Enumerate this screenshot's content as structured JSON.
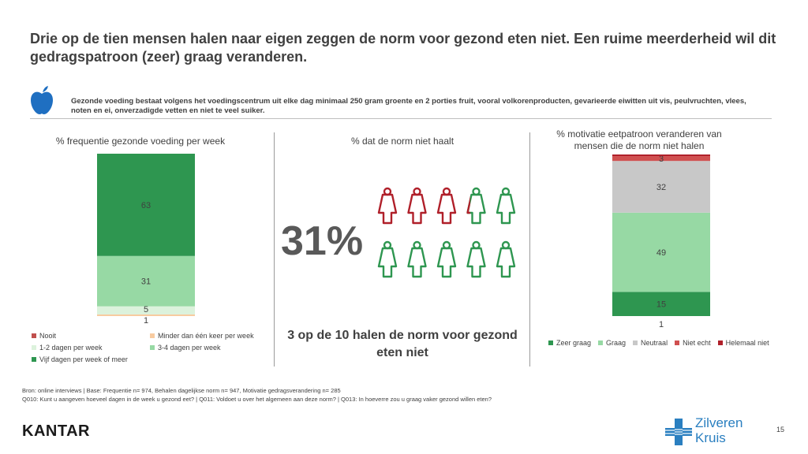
{
  "title": "Drie op de tien mensen halen naar eigen zeggen de norm voor gezond eten niet. Een ruime meerderheid wil dit gedragspatroon (zeer) graag veranderen.",
  "definition": "Gezonde voeding bestaat volgens het voedingscentrum uit elke dag minimaal 250 gram groente en 2 porties fruit, vooral volkorenproducten, gevarieerde eiwitten uit vis, peulvruchten, vlees, noten en ei, onverzadigde vetten en niet te veel suiker.",
  "icons": {
    "apple": "apple-icon",
    "person": "person-icon",
    "logo_cross": "cross-icon"
  },
  "chart_data": [
    {
      "type": "bar",
      "stacked": true,
      "title": "% frequentie gezonde voeding per week",
      "series": [
        {
          "name": "Nooit",
          "values": [
            0
          ],
          "color": "#c0504d",
          "label": ""
        },
        {
          "name": "Minder dan één keer per week",
          "values": [
            1
          ],
          "color": "#f8cba0",
          "label": "1"
        },
        {
          "name": "1-2 dagen per week",
          "values": [
            5
          ],
          "color": "#dcf2dc",
          "label": "5"
        },
        {
          "name": "3-4 dagen per week",
          "values": [
            31
          ],
          "color": "#97d9a4",
          "label": "31"
        },
        {
          "name": "Vijf dagen per week of meer",
          "values": [
            63
          ],
          "color": "#2e9650",
          "label": "63"
        }
      ],
      "legend_position": "bottom"
    },
    {
      "type": "pictogram",
      "title": "% dat de norm niet haalt",
      "value": 31,
      "big_label": "31%",
      "total_icons": 10,
      "highlight_color": "#b0202a",
      "base_color": "#2e9650",
      "caption": "3 op de 10 halen de norm voor gezond eten niet"
    },
    {
      "type": "bar",
      "stacked": true,
      "title": "% motivatie eetpatroon veranderen van mensen die de norm niet halen",
      "series": [
        {
          "name": "Zeer graag",
          "values": [
            15
          ],
          "color": "#2e9650",
          "label": "15"
        },
        {
          "name": "Graag",
          "values": [
            49
          ],
          "color": "#97d9a4",
          "label": "49"
        },
        {
          "name": "Neutraal",
          "values": [
            32
          ],
          "color": "#c8c8c8",
          "label": "32"
        },
        {
          "name": "Niet echt",
          "values": [
            3
          ],
          "color": "#d05050",
          "label": "3"
        },
        {
          "name": "Helemaal niet",
          "values": [
            1
          ],
          "color": "#b0202a",
          "label": "1"
        }
      ],
      "legend_position": "bottom"
    }
  ],
  "source": {
    "line1": "Bron: online interviews | Base: Frequentie n= 974, Behalen dagelijkse norm n= 947, Motivatie gedragsverandering n= 285",
    "line2": "Q010: Kunt u aangeven hoeveel dagen in de week u gezond eet? | Q011: Voldoet u over het algemeen aan deze norm? | Q013: In hoeverre zou u graag vaker gezond willen eten?"
  },
  "footer": {
    "brand": "KANTAR",
    "logo_line1": "Zilveren",
    "logo_line2": "Kruis",
    "page_number": "15"
  }
}
